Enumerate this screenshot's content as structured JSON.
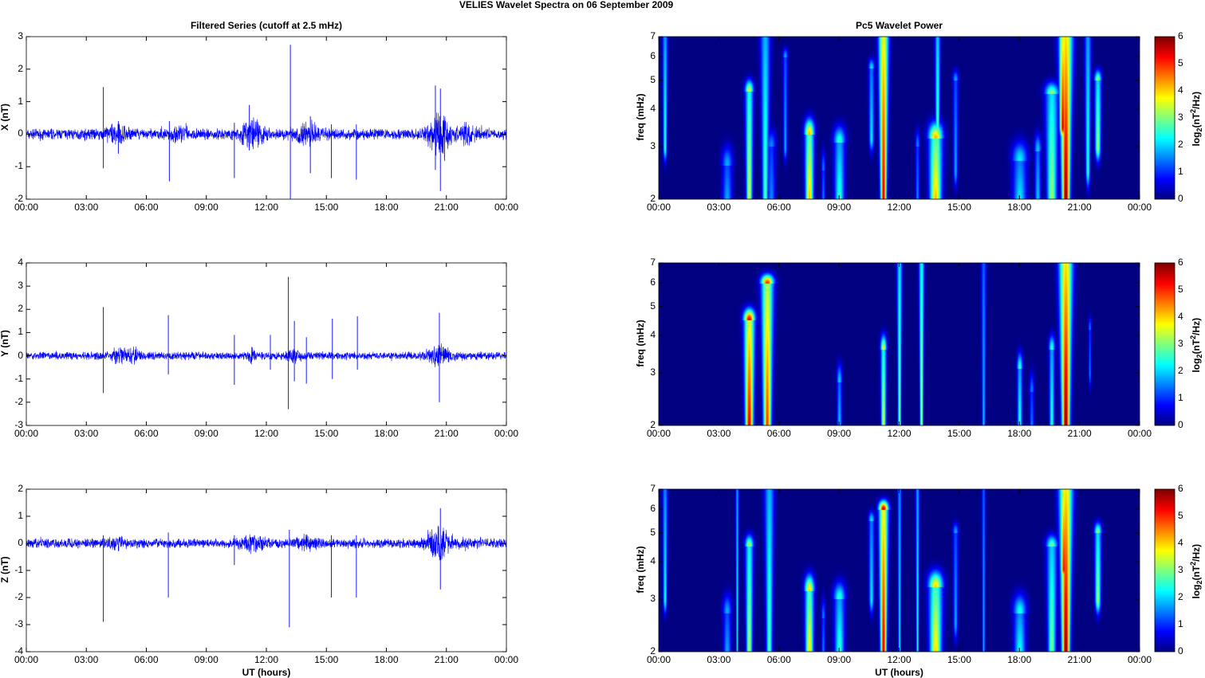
{
  "figure_title": "VELIES Wavelet Spectra on 06 September 2009",
  "chart_data": [
    {
      "type": "line",
      "title": "Filtered Series (cutoff at 2.5 mHz)",
      "ylabel": "X (nT)",
      "xlabel": "",
      "ylim": [
        -2,
        3
      ],
      "yticks": [
        "-2",
        "-1",
        "0",
        "1",
        "2",
        "3"
      ],
      "xlim_hours": [
        0,
        24
      ],
      "xticks": [
        "00:00",
        "03:00",
        "06:00",
        "09:00",
        "12:00",
        "15:00",
        "18:00",
        "21:00",
        "00:00"
      ],
      "noise_amplitude": 0.12,
      "bursts": [
        [
          4.5,
          0.6,
          0.25
        ],
        [
          7.7,
          0.5,
          0.2
        ],
        [
          11.3,
          0.6,
          0.5
        ],
        [
          14,
          0.6,
          0.4
        ],
        [
          20.6,
          0.5,
          1.0
        ],
        [
          22,
          0.5,
          0.3
        ]
      ],
      "spikes": [
        [
          3.85,
          1.45,
          -1.05
        ],
        [
          4.6,
          0.4,
          -0.6
        ],
        [
          7.15,
          0.4,
          -1.45
        ],
        [
          10.4,
          0.35,
          -1.35
        ],
        [
          11.15,
          0.9,
          -0.5
        ],
        [
          13.2,
          2.75,
          -2.0
        ],
        [
          14.2,
          0.55,
          -1.2
        ],
        [
          15.25,
          0.3,
          -1.35
        ],
        [
          16.5,
          0.3,
          -1.4
        ],
        [
          20.45,
          1.5,
          -1.1
        ],
        [
          20.7,
          1.4,
          -1.75
        ]
      ],
      "color": "#0000ff"
    },
    {
      "type": "line",
      "title": "",
      "ylabel": "Y (nT)",
      "xlabel": "",
      "ylim": [
        -3,
        4
      ],
      "yticks": [
        "-3",
        "-2",
        "-1",
        "0",
        "1",
        "2",
        "3",
        "4"
      ],
      "xlim_hours": [
        0,
        24
      ],
      "xticks": [
        "00:00",
        "03:00",
        "06:00",
        "09:00",
        "12:00",
        "15:00",
        "18:00",
        "21:00",
        "00:00"
      ],
      "noise_amplitude": 0.12,
      "bursts": [
        [
          4.6,
          0.4,
          0.4
        ],
        [
          5.4,
          0.3,
          0.3
        ],
        [
          11.3,
          0.2,
          0.3
        ],
        [
          13.4,
          0.3,
          0.3
        ],
        [
          20.6,
          0.5,
          0.5
        ]
      ],
      "spikes": [
        [
          3.85,
          2.1,
          -1.6
        ],
        [
          7.1,
          1.75,
          -0.8
        ],
        [
          10.4,
          0.9,
          -1.25
        ],
        [
          12.2,
          0.9,
          -0.6
        ],
        [
          13.1,
          3.4,
          -2.3
        ],
        [
          13.4,
          1.5,
          -1.1
        ],
        [
          14.0,
          0.8,
          -1.2
        ],
        [
          15.3,
          1.6,
          -1.0
        ],
        [
          16.55,
          1.7,
          -0.6
        ],
        [
          20.65,
          1.85,
          -2.0
        ]
      ],
      "color": "#0000ff"
    },
    {
      "type": "line",
      "title": "",
      "ylabel": "Z (nT)",
      "xlabel": "UT (hours)",
      "ylim": [
        -4,
        2
      ],
      "yticks": [
        "-4",
        "-3",
        "-2",
        "-1",
        "0",
        "1",
        "2"
      ],
      "xlim_hours": [
        0,
        24
      ],
      "xticks": [
        "00:00",
        "03:00",
        "06:00",
        "09:00",
        "12:00",
        "15:00",
        "18:00",
        "21:00",
        "00:00"
      ],
      "noise_amplitude": 0.12,
      "bursts": [
        [
          4.5,
          0.4,
          0.2
        ],
        [
          11.3,
          0.6,
          0.3
        ],
        [
          14,
          0.5,
          0.3
        ],
        [
          20.6,
          0.5,
          0.8
        ],
        [
          22,
          0.4,
          0.2
        ]
      ],
      "spikes": [
        [
          3.85,
          0.3,
          -2.9
        ],
        [
          7.1,
          0.4,
          -2.0
        ],
        [
          10.4,
          0.3,
          -0.8
        ],
        [
          13.15,
          0.5,
          -3.1
        ],
        [
          15.25,
          0.3,
          -2.0
        ],
        [
          16.5,
          0.3,
          -2.0
        ],
        [
          20.7,
          1.3,
          -1.7
        ]
      ],
      "color": "#0000ff"
    },
    {
      "type": "heatmap",
      "title": "Pc5 Wavelet Power",
      "ylabel": "freq (mHz)",
      "xlabel": "",
      "yscale": "log",
      "ylim": [
        2,
        7
      ],
      "yticks": [
        "2",
        "3",
        "4",
        "5",
        "6",
        "7"
      ],
      "xticks": [
        "00:00",
        "03:00",
        "06:00",
        "09:00",
        "12:00",
        "15:00",
        "18:00",
        "21:00",
        "00:00"
      ],
      "colorbar": {
        "label": "log2(nT^2/Hz)",
        "range": [
          0,
          6
        ],
        "ticks": [
          "0",
          "1",
          "2",
          "3",
          "4",
          "5",
          "6"
        ]
      },
      "events": [
        [
          0.3,
          3.0,
          7,
          2.6,
          0.08
        ],
        [
          3.4,
          2,
          2.6,
          1.8,
          0.25
        ],
        [
          4.5,
          2,
          4.6,
          3.6,
          0.15
        ],
        [
          5.3,
          2,
          7,
          2.8,
          0.15
        ],
        [
          5.6,
          2,
          3,
          1.6,
          0.2
        ],
        [
          6.3,
          3,
          6,
          1.8,
          0.08
        ],
        [
          7.5,
          2,
          3.3,
          4.2,
          0.2
        ],
        [
          8.2,
          2,
          2.5,
          1.5,
          0.1
        ],
        [
          9.0,
          2,
          3.1,
          2.6,
          0.25
        ],
        [
          10.6,
          3.2,
          5.5,
          2.2,
          0.1
        ],
        [
          11.2,
          2,
          7,
          5.6,
          0.15
        ],
        [
          12.9,
          2,
          3,
          1.6,
          0.1
        ],
        [
          13.8,
          2,
          3.2,
          4.2,
          0.3
        ],
        [
          13.9,
          3,
          7,
          3.0,
          0.08
        ],
        [
          14.8,
          2.5,
          5,
          1.8,
          0.1
        ],
        [
          18.0,
          2,
          2.7,
          2.2,
          0.35
        ],
        [
          18.9,
          2,
          2.9,
          2.0,
          0.15
        ],
        [
          19.6,
          2,
          4.5,
          3.2,
          0.25
        ],
        [
          20.3,
          2,
          7,
          6.0,
          0.2
        ],
        [
          20.15,
          3.5,
          7,
          5.5,
          0.12
        ],
        [
          21.4,
          2.5,
          7,
          2.6,
          0.1
        ],
        [
          21.9,
          3,
          5,
          3.2,
          0.12
        ]
      ]
    },
    {
      "type": "heatmap",
      "title": "",
      "ylabel": "freq (mHz)",
      "xlabel": "",
      "yscale": "log",
      "ylim": [
        2,
        7
      ],
      "yticks": [
        "2",
        "3",
        "4",
        "5",
        "6",
        "7"
      ],
      "xticks": [
        "00:00",
        "03:00",
        "06:00",
        "09:00",
        "12:00",
        "15:00",
        "18:00",
        "21:00",
        "00:00"
      ],
      "colorbar": {
        "label": "log2(nT^2/Hz)",
        "range": [
          0,
          6
        ],
        "ticks": [
          "0",
          "1",
          "2",
          "3",
          "4",
          "5",
          "6"
        ]
      },
      "events": [
        [
          4.5,
          2,
          4.5,
          5.5,
          0.2
        ],
        [
          5.4,
          2,
          6,
          5.0,
          0.2
        ],
        [
          9.0,
          2,
          2.8,
          2.0,
          0.12
        ],
        [
          11.2,
          2,
          3.6,
          3.6,
          0.12
        ],
        [
          12.0,
          2,
          7,
          3.2,
          0.08
        ],
        [
          13.1,
          2,
          7,
          3.6,
          0.08
        ],
        [
          16.2,
          2,
          7,
          2.0,
          0.08
        ],
        [
          18.0,
          2,
          3.1,
          2.6,
          0.12
        ],
        [
          18.6,
          2,
          2.6,
          1.5,
          0.12
        ],
        [
          19.6,
          2,
          3.6,
          2.6,
          0.12
        ],
        [
          20.3,
          2,
          7,
          6.0,
          0.2
        ],
        [
          21.5,
          3,
          4.2,
          1.5,
          0.06
        ]
      ]
    },
    {
      "type": "heatmap",
      "title": "",
      "ylabel": "freq (mHz)",
      "xlabel": "UT (hours)",
      "yscale": "log",
      "ylim": [
        2,
        7
      ],
      "yticks": [
        "2",
        "3",
        "4",
        "5",
        "6",
        "7"
      ],
      "xticks": [
        "00:00",
        "03:00",
        "06:00",
        "09:00",
        "12:00",
        "15:00",
        "18:00",
        "21:00",
        "00:00"
      ],
      "colorbar": {
        "label": "log2(nT^2/Hz)",
        "range": [
          0,
          6
        ],
        "ticks": [
          "0",
          "1",
          "2",
          "3",
          "4",
          "5",
          "6"
        ]
      },
      "events": [
        [
          0.3,
          3,
          7,
          2.4,
          0.08
        ],
        [
          3.4,
          2,
          2.7,
          1.8,
          0.2
        ],
        [
          3.9,
          2,
          7,
          2.5,
          0.05
        ],
        [
          4.5,
          2,
          4.5,
          3.4,
          0.15
        ],
        [
          5.5,
          2,
          7,
          2.8,
          0.15
        ],
        [
          7.5,
          2,
          3.2,
          4.0,
          0.2
        ],
        [
          8.2,
          2,
          2.6,
          1.5,
          0.1
        ],
        [
          9.0,
          2,
          3.0,
          2.6,
          0.25
        ],
        [
          10.6,
          3,
          5.5,
          2.2,
          0.1
        ],
        [
          11.2,
          2,
          6,
          5.6,
          0.15
        ],
        [
          12.0,
          2,
          7,
          2.4,
          0.06
        ],
        [
          12.9,
          2,
          7,
          2.6,
          0.06
        ],
        [
          13.8,
          2,
          3.3,
          4.0,
          0.3
        ],
        [
          14.8,
          2.5,
          5,
          1.8,
          0.1
        ],
        [
          16.2,
          2,
          7,
          2.0,
          0.06
        ],
        [
          18.0,
          2,
          2.7,
          2.4,
          0.3
        ],
        [
          19.6,
          2,
          4.5,
          3.0,
          0.2
        ],
        [
          20.3,
          2,
          7,
          6.0,
          0.2
        ],
        [
          20.2,
          3.8,
          7,
          5.3,
          0.12
        ],
        [
          21.9,
          3,
          5,
          3.2,
          0.12
        ]
      ]
    }
  ]
}
